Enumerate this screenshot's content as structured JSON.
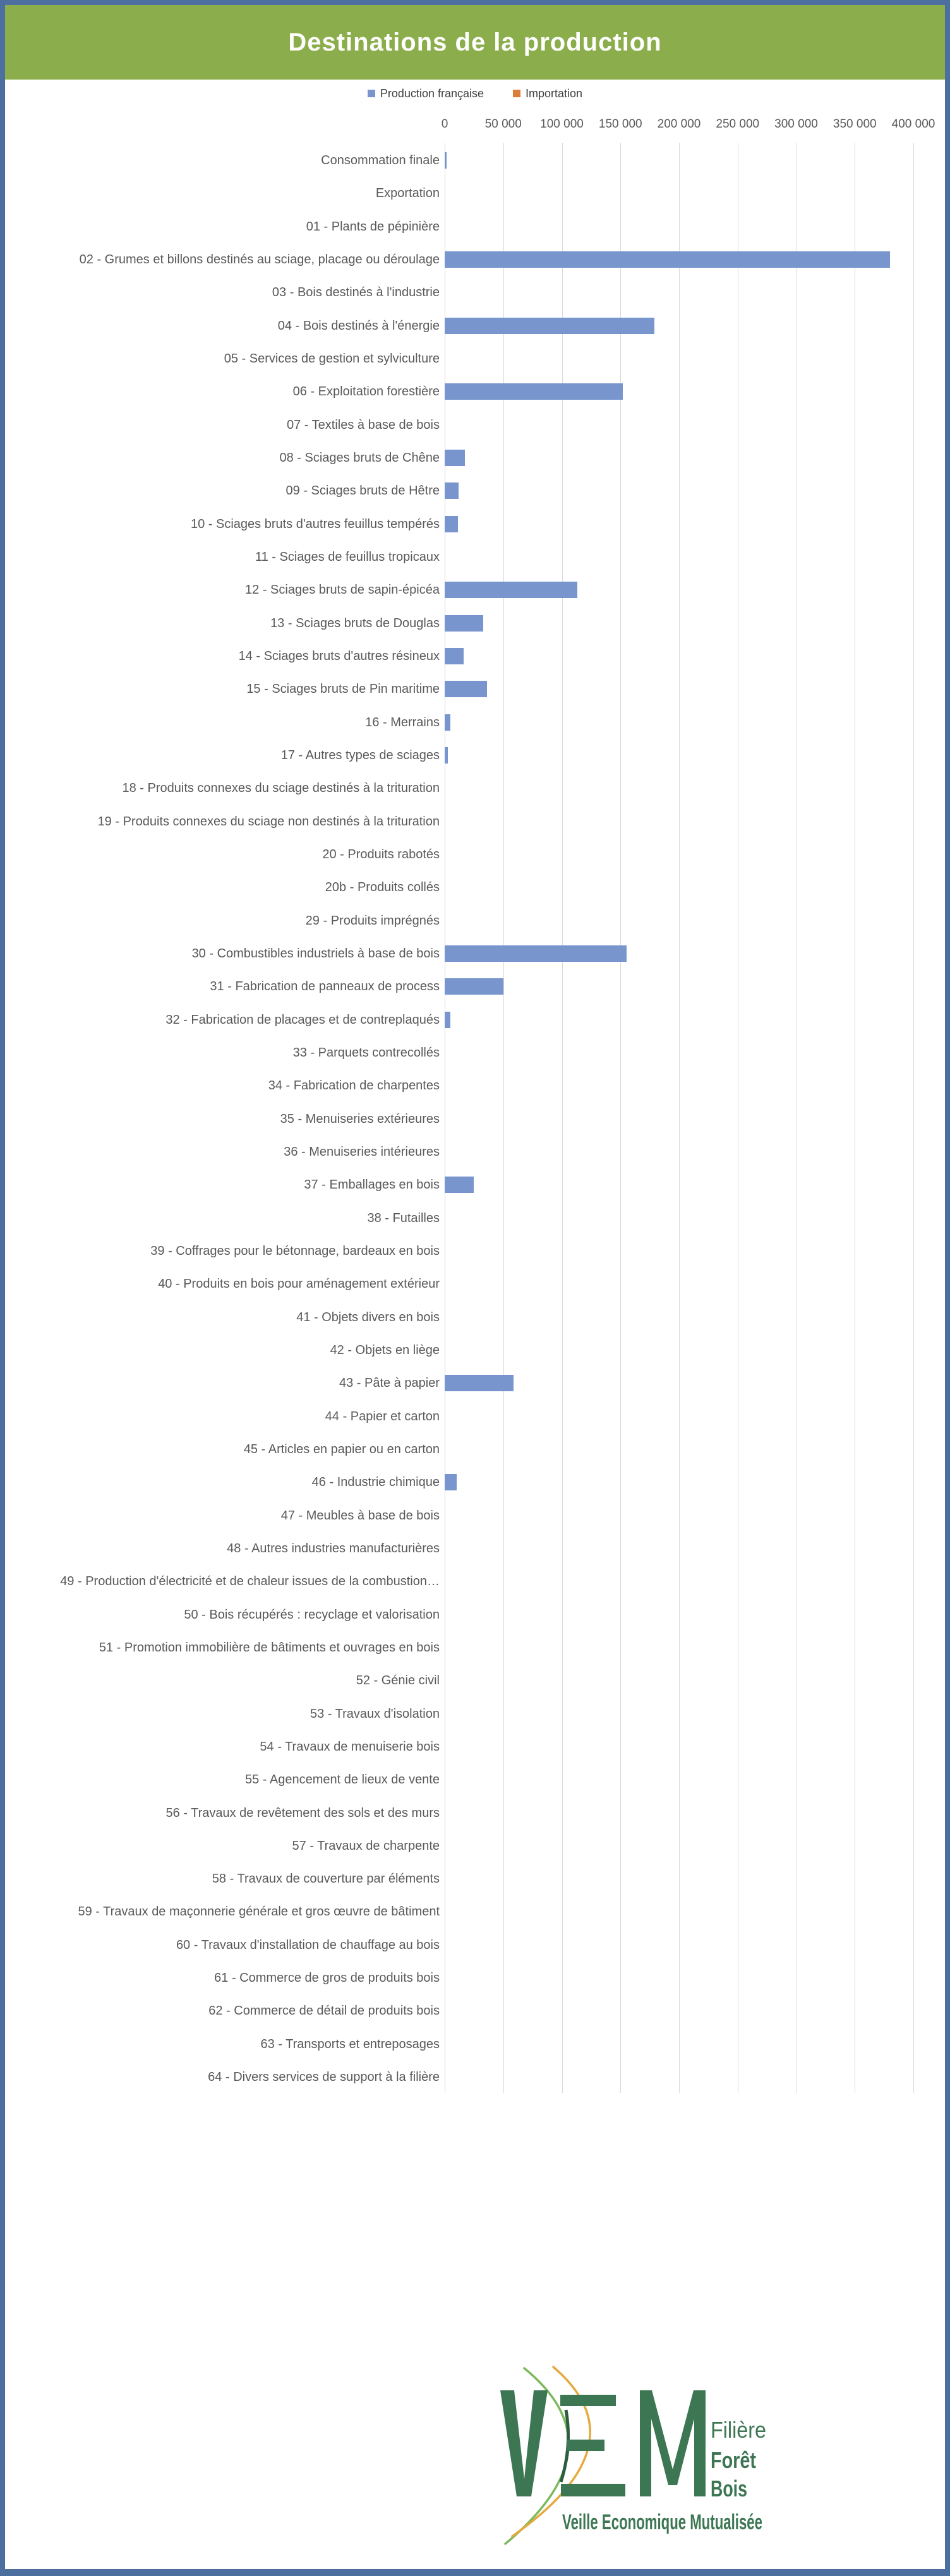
{
  "header": {
    "title": "Destinations de la production",
    "bg_color": "#8CAD4B",
    "text_color": "#FFFFFF"
  },
  "frame": {
    "border_color": "#4C6F9F",
    "background": "#FFFFFF"
  },
  "legend": {
    "items": [
      {
        "label": "Production française",
        "color": "#7896CD"
      },
      {
        "label": "Importation",
        "color": "#DE7D3A"
      }
    ]
  },
  "style_colors": {
    "grid": "#D9D9D9",
    "axis_text": "#595959",
    "category_text": "#595959",
    "legend_text": "#404040"
  },
  "chart_data": {
    "type": "bar",
    "orientation": "horizontal",
    "title": "Destinations de la production",
    "xlabel": "",
    "ylabel": "",
    "xlim": [
      0,
      400000
    ],
    "grid": true,
    "legend_position": "top",
    "x_ticks": [
      "0",
      "50 000",
      "100 000",
      "150 000",
      "200 000",
      "250 000",
      "300 000",
      "350 000",
      "400 000"
    ],
    "x_tick_values": [
      0,
      50000,
      100000,
      150000,
      200000,
      250000,
      300000,
      350000,
      400000
    ],
    "categories": [
      "Consommation finale",
      "Exportation",
      "01 - Plants de pépinière",
      "02 - Grumes et billons destinés au sciage, placage ou déroulage",
      "03 - Bois destinés à l'industrie",
      "04 - Bois destinés à l'énergie",
      "05 - Services de gestion et sylviculture",
      "06 - Exploitation forestière",
      "07 - Textiles à base de bois",
      "08 - Sciages bruts de Chêne",
      "09 - Sciages bruts de Hêtre",
      "10 - Sciages bruts d'autres feuillus tempérés",
      "11 - Sciages de feuillus tropicaux",
      "12 - Sciages bruts de sapin-épicéa",
      "13 - Sciages bruts de Douglas",
      "14 - Sciages bruts d'autres résineux",
      "15 - Sciages bruts de Pin maritime",
      "16 - Merrains",
      "17 - Autres types de sciages",
      "18 - Produits connexes du sciage destinés à la trituration",
      "19 - Produits connexes du sciage non destinés à la trituration",
      "20 - Produits rabotés",
      "20b - Produits collés",
      "29 - Produits imprégnés",
      "30 - Combustibles industriels à base de bois",
      "31 - Fabrication de panneaux de process",
      "32 - Fabrication de placages et de contreplaqués",
      "33 - Parquets contrecollés",
      "34 - Fabrication de charpentes",
      "35 - Menuiseries extérieures",
      "36 - Menuiseries intérieures",
      "37 - Emballages en bois",
      "38 - Futailles",
      "39 - Coffrages pour le bétonnage, bardeaux en bois",
      "40 - Produits en bois pour aménagement extérieur",
      "41 - Objets divers en bois",
      "42 - Objets en liège",
      "43 - Pâte à papier",
      "44 - Papier et carton",
      "45 - Articles en papier ou en carton",
      "46 - Industrie chimique",
      "47 - Meubles à base de bois",
      "48 - Autres industries manufacturières",
      "49 - Production d'électricité et de chaleur issues de la combustion…",
      "50 - Bois récupérés : recyclage et valorisation",
      "51 - Promotion immobilière de bâtiments et ouvrages en bois",
      "52 - Génie civil",
      "53 - Travaux d'isolation",
      "54 - Travaux de menuiserie bois",
      "55 - Agencement de lieux de vente",
      "56 - Travaux de revêtement des sols et des murs",
      "57 - Travaux de charpente",
      "58 - Travaux de couverture par éléments",
      "59 - Travaux de maçonnerie générale et gros œuvre de bâtiment",
      "60 - Travaux d'installation de chauffage au bois",
      "61 - Commerce de gros de produits bois",
      "62 - Commerce de détail de produits bois",
      "63 - Transports et entreposages",
      "64 - Divers services de support à la filière"
    ],
    "series": [
      {
        "name": "Production française",
        "color": "#7896CD",
        "values": [
          1500,
          0,
          0,
          380000,
          0,
          179000,
          0,
          152000,
          0,
          17000,
          12000,
          11500,
          0,
          113000,
          33000,
          16000,
          36000,
          5000,
          2500,
          0,
          0,
          0,
          0,
          0,
          155000,
          50000,
          5000,
          0,
          0,
          0,
          0,
          25000,
          0,
          0,
          0,
          0,
          0,
          59000,
          0,
          0,
          10000,
          0,
          0,
          0,
          0,
          0,
          0,
          0,
          0,
          0,
          0,
          0,
          0,
          0,
          0,
          0,
          0,
          0,
          0
        ]
      },
      {
        "name": "Importation",
        "color": "#DE7D3A",
        "values": [
          0,
          0,
          0,
          0,
          0,
          0,
          0,
          0,
          0,
          0,
          0,
          0,
          0,
          0,
          0,
          0,
          0,
          0,
          0,
          0,
          0,
          0,
          0,
          0,
          0,
          0,
          0,
          0,
          0,
          0,
          0,
          0,
          0,
          0,
          0,
          0,
          0,
          0,
          0,
          0,
          0,
          0,
          0,
          0,
          0,
          0,
          0,
          0,
          0,
          0,
          0,
          0,
          0,
          0,
          0,
          0,
          0,
          0,
          0
        ]
      }
    ]
  },
  "logo": {
    "letters": "VEM",
    "line1": "Filière",
    "line2": "Forêt",
    "line3": "Bois",
    "tagline": "Veille Economique Mutualisée",
    "green_dark": "#3C7653",
    "green_arc": "#7CB95C",
    "orange_arc": "#E5A93E"
  }
}
